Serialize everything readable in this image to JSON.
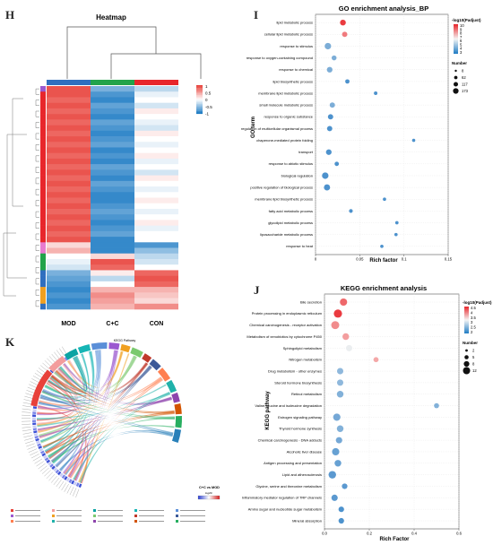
{
  "panels": {
    "heatmap_letter": "H",
    "go_letter": "I",
    "kegg_bubble_letter": "J",
    "chord_letter": "K"
  },
  "chart_data": [
    {
      "type": "heatmap",
      "title": "Heatmap",
      "columns": [
        "MOD",
        "C+C",
        "CON"
      ],
      "column_bar_colors": [
        "#2f6fbf",
        "#22a34a",
        "#e8262b"
      ],
      "legend_ticks": [
        "1",
        "0.5",
        "0",
        "-0.5",
        "-1"
      ],
      "row_values": [
        [
          0.9,
          -0.6,
          -0.3
        ],
        [
          0.9,
          -0.8,
          -0.1
        ],
        [
          0.8,
          -0.9,
          0.0
        ],
        [
          0.9,
          -0.7,
          -0.2
        ],
        [
          0.8,
          -0.8,
          0.1
        ],
        [
          0.9,
          -0.9,
          0.0
        ],
        [
          0.8,
          -0.7,
          -0.1
        ],
        [
          0.9,
          -0.8,
          -0.2
        ],
        [
          0.8,
          -0.9,
          0.1
        ],
        [
          0.9,
          -0.8,
          0.0
        ],
        [
          0.8,
          -0.7,
          -0.1
        ],
        [
          0.9,
          -0.9,
          0.0
        ],
        [
          0.8,
          -0.8,
          0.1
        ],
        [
          0.9,
          -0.9,
          -0.1
        ],
        [
          0.8,
          -0.7,
          0.0
        ],
        [
          0.9,
          -0.8,
          -0.2
        ],
        [
          0.8,
          -0.9,
          0.1
        ],
        [
          0.9,
          -0.7,
          0.0
        ],
        [
          0.8,
          -0.8,
          -0.1
        ],
        [
          0.9,
          -0.9,
          0.0
        ],
        [
          0.8,
          -0.9,
          0.1
        ],
        [
          0.9,
          -0.8,
          0.0
        ],
        [
          0.8,
          -0.7,
          -0.1
        ],
        [
          0.9,
          -0.8,
          0.0
        ],
        [
          0.8,
          -0.9,
          0.1
        ],
        [
          0.9,
          -0.8,
          -0.1
        ],
        [
          0.8,
          -0.7,
          0.0
        ],
        [
          0.9,
          -0.9,
          0.0
        ],
        [
          0.2,
          -0.9,
          -0.8
        ],
        [
          0.4,
          -0.9,
          -0.5
        ],
        [
          0.0,
          0.2,
          -0.3
        ],
        [
          -0.1,
          0.9,
          -0.2
        ],
        [
          -0.2,
          0.8,
          0.0
        ],
        [
          -0.6,
          0.1,
          0.8
        ],
        [
          -0.7,
          -0.3,
          0.9
        ],
        [
          -0.8,
          0.0,
          0.8
        ],
        [
          -0.9,
          0.4,
          0.4
        ],
        [
          -0.8,
          0.6,
          0.3
        ],
        [
          -0.9,
          0.5,
          0.2
        ],
        [
          -0.8,
          0.4,
          0.6
        ]
      ]
    },
    {
      "type": "scatter",
      "title": "GO enrichment analysis_BP",
      "xlabel": "Rich factor",
      "ylabel": "GO term",
      "xlim": [
        0,
        0.15
      ],
      "x_ticks": [
        "0",
        "0.05",
        "0.1",
        "0.15"
      ],
      "color_legend_title": "-log10(Padjust)",
      "color_legend_ticks": [
        "10",
        "9",
        "8",
        "7",
        "6",
        "5",
        "4",
        "3"
      ],
      "size_legend_title": "Number",
      "size_legend_labels": [
        "8",
        "62",
        "117",
        "173"
      ],
      "terms": [
        {
          "label": "lipid metabolic process",
          "x": 0.031,
          "p": 10,
          "n": 120
        },
        {
          "label": "cellular lipid metabolic process",
          "x": 0.033,
          "p": 8,
          "n": 90
        },
        {
          "label": "response to stimulus",
          "x": 0.014,
          "p": 4,
          "n": 173
        },
        {
          "label": "response to oxygen-containing compound",
          "x": 0.021,
          "p": 4,
          "n": 70
        },
        {
          "label": "response to chemical",
          "x": 0.016,
          "p": 4,
          "n": 110
        },
        {
          "label": "lipid biosynthetic process",
          "x": 0.036,
          "p": 3,
          "n": 40
        },
        {
          "label": "membrane lipid metabolic process",
          "x": 0.068,
          "p": 3,
          "n": 15
        },
        {
          "label": "small molecule metabolic process",
          "x": 0.019,
          "p": 4,
          "n": 90
        },
        {
          "label": "response to organic substance",
          "x": 0.017,
          "p": 3,
          "n": 90
        },
        {
          "label": "regulation of multicellular organismal process",
          "x": 0.016,
          "p": 3,
          "n": 90
        },
        {
          "label": "chaperone-mediated protein folding",
          "x": 0.111,
          "p": 3,
          "n": 8
        },
        {
          "label": "transport",
          "x": 0.015,
          "p": 3,
          "n": 110
        },
        {
          "label": "response to abiotic stimulus",
          "x": 0.024,
          "p": 3,
          "n": 40
        },
        {
          "label": "biological regulation",
          "x": 0.011,
          "p": 3,
          "n": 173
        },
        {
          "label": "positive regulation of biological process",
          "x": 0.013,
          "p": 3,
          "n": 150
        },
        {
          "label": "membrane lipid biosynthetic process",
          "x": 0.078,
          "p": 3,
          "n": 10
        },
        {
          "label": "fatty acid metabolic process",
          "x": 0.04,
          "p": 3,
          "n": 20
        },
        {
          "label": "glycolipid metabolic process",
          "x": 0.092,
          "p": 3,
          "n": 10
        },
        {
          "label": "liposaccharide metabolic process",
          "x": 0.091,
          "p": 3,
          "n": 10
        },
        {
          "label": "response to heat",
          "x": 0.075,
          "p": 3,
          "n": 10
        }
      ]
    },
    {
      "type": "scatter",
      "title": "KEGG enrichment analysis",
      "xlabel": "Rich Factor",
      "ylabel": "KEGG pathway",
      "xlim": [
        0,
        0.6
      ],
      "x_ticks": [
        "0.0",
        "0.2",
        "0.4",
        "0.6"
      ],
      "color_legend_title": "-log10(Padjust)",
      "color_legend_ticks": [
        "4.5",
        "4",
        "3.5",
        "3",
        "2.5",
        "2"
      ],
      "size_legend_title": "Number",
      "size_legend_labels": [
        "2",
        "5",
        "8",
        "12"
      ],
      "terms": [
        {
          "label": "Bile secretion",
          "x": 0.085,
          "p": 4.0,
          "n": 8
        },
        {
          "label": "Protein processing in endoplasmic reticulum",
          "x": 0.06,
          "p": 4.5,
          "n": 12
        },
        {
          "label": "Chemical carcinogenesis - receptor activation",
          "x": 0.048,
          "p": 3.6,
          "n": 11
        },
        {
          "label": "Metabolism of xenobiotics by cytochrome P450",
          "x": 0.095,
          "p": 3.4,
          "n": 6
        },
        {
          "label": "Sphingolipid metabolism",
          "x": 0.11,
          "p": 3.2,
          "n": 5
        },
        {
          "label": "Nitrogen metabolism",
          "x": 0.23,
          "p": 3.3,
          "n": 2
        },
        {
          "label": "Drug metabolism - other enzymes",
          "x": 0.07,
          "p": 2.5,
          "n": 5
        },
        {
          "label": "Steroid hormone biosynthesis",
          "x": 0.07,
          "p": 2.5,
          "n": 5
        },
        {
          "label": "Retinol metabolism",
          "x": 0.07,
          "p": 2.4,
          "n": 6
        },
        {
          "label": "Valine, leucine and isoleucine degradation",
          "x": 0.5,
          "p": 2.4,
          "n": 2
        },
        {
          "label": "Estrogen signaling pathway",
          "x": 0.055,
          "p": 2.3,
          "n": 8
        },
        {
          "label": "Thyroid hormone synthesis",
          "x": 0.07,
          "p": 2.4,
          "n": 6
        },
        {
          "label": "Chemical carcinogenesis - DNA adducts",
          "x": 0.065,
          "p": 2.3,
          "n": 5
        },
        {
          "label": "Alcoholic liver disease",
          "x": 0.05,
          "p": 2.2,
          "n": 8
        },
        {
          "label": "Antigen processing and presentation",
          "x": 0.06,
          "p": 2.2,
          "n": 6
        },
        {
          "label": "Lipid and atherosclerosis",
          "x": 0.035,
          "p": 2.1,
          "n": 9
        },
        {
          "label": "Glycine, serine and threonine metabolism",
          "x": 0.09,
          "p": 2.1,
          "n": 3
        },
        {
          "label": "Inflammatory mediator regulation of TRP channels",
          "x": 0.045,
          "p": 2.1,
          "n": 5
        },
        {
          "label": "Amino sugar and nucleotide sugar metabolism",
          "x": 0.075,
          "p": 2.0,
          "n": 3
        },
        {
          "label": "Mineral absorption",
          "x": 0.075,
          "p": 2.0,
          "n": 3
        }
      ]
    },
    {
      "type": "chord",
      "title": "KEGG Pathway",
      "legend_title": "C+C vs MOD",
      "legend_subtitle": "log2fc"
    }
  ]
}
